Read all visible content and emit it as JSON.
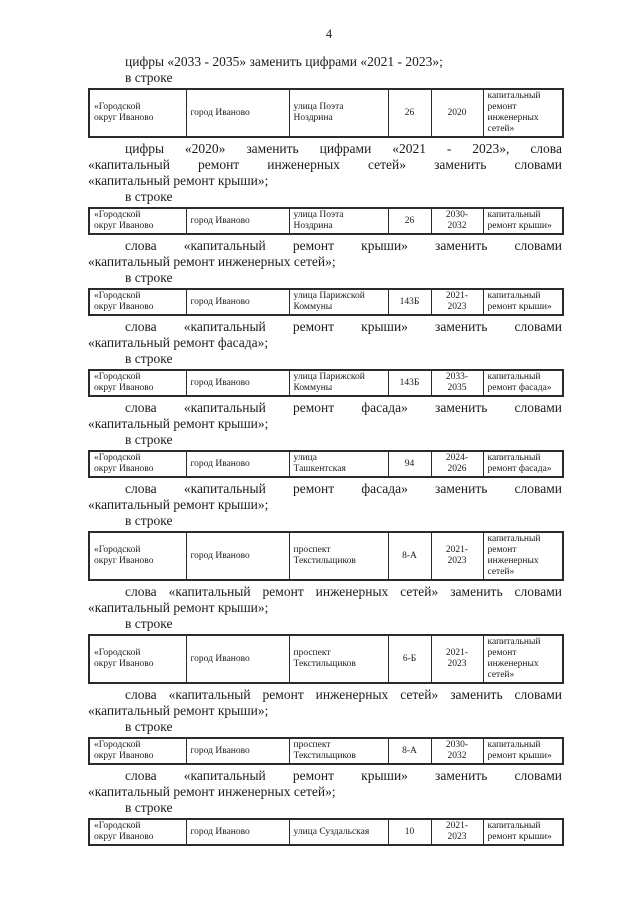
{
  "page": {
    "number": "4",
    "background_color": "#ffffff",
    "text_color": "#1b1b1b"
  },
  "document": {
    "table_columns": {
      "widths": [
        97,
        103,
        99,
        43,
        52,
        80
      ],
      "aligns": [
        "left",
        "left",
        "left",
        "center",
        "center",
        "left"
      ]
    },
    "blocks": [
      {
        "type": "text",
        "name": "amendment-paragraph-1",
        "lines": [
          {
            "text": "цифры «2033 - 2035» заменить цифрами «2021 - 2023»;",
            "indent": true
          }
        ]
      },
      {
        "type": "text",
        "name": "row-intro-1",
        "lines": [
          {
            "text": "в строке",
            "indent": true
          }
        ]
      },
      {
        "type": "table",
        "name": "amendment-table-1",
        "cells": [
          "«Городской\nокруг Иваново",
          "город Иваново",
          "улица Поэта\nНоздрина",
          "26",
          "2020",
          "капитальный\nремонт\nинженерных\nсетей»"
        ]
      },
      {
        "type": "text",
        "name": "amendment-paragraph-2",
        "lines": [
          {
            "text": "цифры «2020» заменить цифрами «2021 - 2023», слова",
            "indent": true,
            "justify": true
          },
          {
            "text": "«капитальный ремонт инженерных сетей» заменить словами",
            "justify": true
          },
          {
            "text": "«капитальный ремонт крыши»;"
          }
        ]
      },
      {
        "type": "text",
        "name": "row-intro-2",
        "lines": [
          {
            "text": "в строке",
            "indent": true
          }
        ]
      },
      {
        "type": "table",
        "name": "amendment-table-2",
        "cells": [
          "«Городской\nокруг Иваново",
          "город Иваново",
          "улица Поэта\nНоздрина",
          "26",
          "2030-\n2032",
          "капитальный\nремонт крыши»"
        ]
      },
      {
        "type": "text",
        "name": "amendment-paragraph-3",
        "lines": [
          {
            "text": "слова «капитальный ремонт крыши» заменить словами",
            "indent": true,
            "justify": true
          },
          {
            "text": "«капитальный ремонт инженерных сетей»;"
          }
        ]
      },
      {
        "type": "text",
        "name": "row-intro-3",
        "lines": [
          {
            "text": "в строке",
            "indent": true
          }
        ]
      },
      {
        "type": "table",
        "name": "amendment-table-3",
        "cells": [
          "«Городской\nокруг Иваново",
          "город Иваново",
          "улица Парижской\nКоммуны",
          "143Б",
          "2021-\n2023",
          "капитальный\nремонт крыши»"
        ]
      },
      {
        "type": "text",
        "name": "amendment-paragraph-4",
        "lines": [
          {
            "text": "слова «капитальный ремонт крыши» заменить словами",
            "indent": true,
            "justify": true
          },
          {
            "text": "«капитальный ремонт фасада»;"
          }
        ]
      },
      {
        "type": "text",
        "name": "row-intro-4",
        "lines": [
          {
            "text": "в строке",
            "indent": true
          }
        ]
      },
      {
        "type": "table",
        "name": "amendment-table-4",
        "cells": [
          "«Городской\nокруг Иваново",
          "город Иваново",
          "улица Парижской\nКоммуны",
          "143Б",
          "2033-\n2035",
          "капитальный\nремонт фасада»"
        ]
      },
      {
        "type": "text",
        "name": "amendment-paragraph-5",
        "lines": [
          {
            "text": "слова «капитальный ремонт фасада» заменить словами",
            "indent": true,
            "justify": true
          },
          {
            "text": "«капитальный ремонт крыши»;"
          }
        ]
      },
      {
        "type": "text",
        "name": "row-intro-5",
        "lines": [
          {
            "text": "в строке",
            "indent": true
          }
        ]
      },
      {
        "type": "table",
        "name": "amendment-table-5",
        "cells": [
          "«Городской\nокруг Иваново",
          "город Иваново",
          "улица\nТашкентская",
          "94",
          "2024-\n2026",
          "капитальный\nремонт фасада»"
        ]
      },
      {
        "type": "text",
        "name": "amendment-paragraph-6",
        "lines": [
          {
            "text": "слова «капитальный ремонт фасада» заменить словами",
            "indent": true,
            "justify": true
          },
          {
            "text": "«капитальный ремонт крыши»;"
          }
        ]
      },
      {
        "type": "text",
        "name": "row-intro-6",
        "lines": [
          {
            "text": "в строке",
            "indent": true
          }
        ]
      },
      {
        "type": "table",
        "name": "amendment-table-6",
        "cells": [
          "«Городской\nокруг Иваново",
          "город Иваново",
          "проспект\nТекстильщиков",
          "8-А",
          "2021-\n2023",
          "капитальный\nремонт\nинженерных\nсетей»"
        ]
      },
      {
        "type": "text",
        "name": "amendment-paragraph-7",
        "lines": [
          {
            "text": "слова «капитальный ремонт инженерных сетей» заменить словами",
            "indent": true,
            "justify": true
          },
          {
            "text": "«капитальный ремонт крыши»;"
          }
        ]
      },
      {
        "type": "text",
        "name": "row-intro-7",
        "lines": [
          {
            "text": "в строке",
            "indent": true
          }
        ]
      },
      {
        "type": "table",
        "name": "amendment-table-7",
        "cells": [
          "«Городской\nокруг Иваново",
          "город Иваново",
          "проспект\nТекстильщиков",
          "6-Б",
          "2021-\n2023",
          "капитальный\nремонт\nинженерных\nсетей»"
        ]
      },
      {
        "type": "text",
        "name": "amendment-paragraph-8",
        "lines": [
          {
            "text": "слова «капитальный ремонт инженерных сетей» заменить словами",
            "indent": true,
            "justify": true
          },
          {
            "text": "«капитальный ремонт крыши»;"
          }
        ]
      },
      {
        "type": "text",
        "name": "row-intro-8",
        "lines": [
          {
            "text": "в строке",
            "indent": true
          }
        ]
      },
      {
        "type": "table",
        "name": "amendment-table-8",
        "cells": [
          "«Городской\nокруг Иваново",
          "город Иваново",
          "проспект\nТекстильщиков",
          "8-А",
          "2030-\n2032",
          "капитальный\nремонт крыши»"
        ]
      },
      {
        "type": "text",
        "name": "amendment-paragraph-9",
        "lines": [
          {
            "text": "слова «капитальный ремонт крыши» заменить словами",
            "indent": true,
            "justify": true
          },
          {
            "text": "«капитальный ремонт инженерных сетей»;"
          }
        ]
      },
      {
        "type": "text",
        "name": "row-intro-9",
        "lines": [
          {
            "text": "в строке",
            "indent": true
          }
        ]
      },
      {
        "type": "table",
        "name": "amendment-table-9",
        "cells": [
          "«Городской\nокруг Иваново",
          "город Иваново",
          "улица Суздальская",
          "10",
          "2021-\n2023",
          "капитальный\nремонт крыши»"
        ]
      }
    ]
  }
}
